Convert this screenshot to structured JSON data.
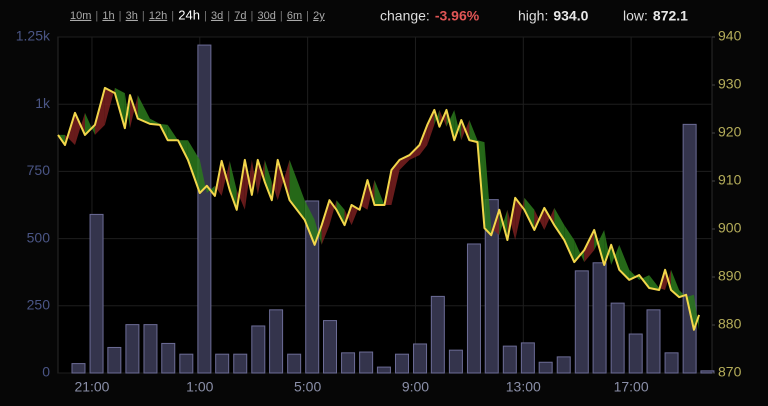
{
  "ranges": [
    {
      "label": "10m"
    },
    {
      "label": "1h"
    },
    {
      "label": "3h"
    },
    {
      "label": "12h"
    },
    {
      "label": "24h",
      "selected": true
    },
    {
      "label": "3d"
    },
    {
      "label": "7d"
    },
    {
      "label": "30d"
    },
    {
      "label": "6m"
    },
    {
      "label": "2y"
    }
  ],
  "stats": [
    {
      "label": "change:",
      "value": "-3.96%",
      "color": "#e05555"
    },
    {
      "label": "high:",
      "value": "934.0",
      "color": "#e8e8e8"
    },
    {
      "label": "low:",
      "value": "872.1",
      "color": "#e8e8e8"
    }
  ],
  "chart_data": {
    "type": "combo",
    "grid": true,
    "xlim": [
      19.74,
      44
    ],
    "xticks": [
      {
        "value": 21,
        "label": "21:00"
      },
      {
        "value": 25,
        "label": "1:00"
      },
      {
        "value": 29,
        "label": "5:00"
      },
      {
        "value": 33,
        "label": "9:00"
      },
      {
        "value": 37,
        "label": "13:00"
      },
      {
        "value": 41,
        "label": "17:00"
      }
    ],
    "ylim": [
      0,
      1250
    ],
    "yticks": [
      0,
      250,
      500,
      750,
      {
        "value": 1000,
        "label": "1k"
      },
      {
        "value": 1250,
        "label": "1.25k"
      }
    ],
    "y2lim": [
      870,
      940
    ],
    "y2ticks": [
      870,
      880,
      890,
      900,
      910,
      920,
      930,
      940
    ],
    "series": [
      {
        "type": "bar",
        "color": "#34344c",
        "stroke": "#6c6c96",
        "x": [
          20.5,
          21.17,
          21.83,
          22.5,
          23.17,
          23.83,
          24.5,
          25.17,
          25.83,
          26.5,
          27.17,
          27.83,
          28.5,
          29.17,
          29.83,
          30.5,
          31.17,
          31.83,
          32.5,
          33.17,
          33.83,
          34.5,
          35.17,
          35.83,
          36.5,
          37.17,
          37.83,
          38.5,
          39.17,
          39.83,
          40.5,
          41.17,
          41.83,
          42.5,
          43.17,
          43.83
        ],
        "values": [
          35,
          590,
          95,
          180,
          180,
          110,
          70,
          1220,
          70,
          70,
          175,
          235,
          70,
          640,
          195,
          75,
          78,
          22,
          70,
          108,
          285,
          85,
          480,
          645,
          100,
          112,
          40,
          60,
          380,
          410,
          260,
          145,
          235,
          75,
          925,
          8
        ]
      },
      {
        "type": "line",
        "axis": "y2",
        "color": "#f2d64b",
        "x": [
          19.74,
          20.0,
          20.37,
          20.74,
          21.11,
          21.48,
          21.85,
          22.22,
          22.41,
          22.7,
          23.15,
          23.52,
          23.81,
          24.19,
          24.56,
          25.0,
          25.26,
          25.56,
          25.81,
          26.11,
          26.37,
          26.67,
          26.93,
          27.15,
          27.41,
          27.67,
          27.89,
          28.33,
          28.89,
          29.26,
          29.52,
          29.81,
          30.07,
          30.37,
          30.63,
          30.93,
          31.22,
          31.48,
          31.85,
          32.11,
          32.41,
          32.78,
          33.15,
          33.44,
          33.7,
          33.89,
          34.15,
          34.44,
          34.7,
          35.0,
          35.3,
          35.56,
          35.81,
          36.11,
          36.41,
          36.7,
          37.04,
          37.41,
          37.78,
          38.15,
          38.52,
          38.89,
          39.26,
          39.63,
          40.0,
          40.26,
          40.56,
          40.93,
          41.3,
          41.67,
          42.04,
          42.26,
          42.48,
          42.78,
          43.04,
          43.33,
          43.52
        ],
        "values": [
          919.6,
          917.5,
          924.2,
          919.6,
          921.7,
          929.4,
          928.3,
          921.0,
          927.9,
          923.0,
          921.9,
          921.7,
          918.5,
          918.5,
          914.4,
          907.5,
          909.0,
          906.9,
          914.2,
          908.1,
          904.0,
          914.4,
          907.1,
          914.4,
          909.8,
          906.0,
          914.4,
          906.0,
          901.9,
          896.7,
          900.8,
          906.0,
          904.0,
          900.8,
          905.0,
          904.0,
          910.2,
          905.0,
          905.0,
          912.3,
          914.4,
          915.4,
          917.5,
          921.7,
          924.8,
          921.3,
          924.8,
          918.5,
          922.7,
          918.5,
          918.1,
          900.2,
          898.7,
          904.0,
          897.7,
          906.5,
          904.0,
          899.8,
          904.4,
          900.8,
          897.7,
          893.1,
          895.6,
          899.8,
          892.5,
          896.7,
          891.5,
          889.4,
          890.4,
          887.7,
          887.3,
          891.5,
          887.3,
          885.8,
          886.3,
          879.0,
          882.1
        ]
      },
      {
        "type": "band",
        "axis": "y2",
        "color": [
          "#2c7a1c",
          "#7a2020"
        ],
        "values": [
          919.6,
          919.6,
          917.5,
          924.2,
          919.6,
          921.7,
          929.4,
          928.3,
          921.0,
          927.9,
          923.0,
          921.9,
          921.7,
          918.5,
          918.5,
          914.4,
          907.5,
          909.0,
          906.9,
          914.2,
          908.1,
          904.0,
          914.4,
          907.1,
          914.4,
          909.8,
          906.0,
          914.4,
          906.0,
          901.9,
          896.7,
          900.8,
          906.0,
          904.0,
          900.8,
          905.0,
          904.0,
          910.2,
          905.0,
          905.0,
          912.3,
          914.4,
          915.4,
          917.5,
          921.7,
          924.8,
          921.3,
          924.8,
          918.5,
          922.7,
          918.5,
          918.1,
          900.2,
          898.7,
          904.0,
          897.7,
          906.5,
          904.0,
          899.8,
          904.4,
          900.8,
          897.7,
          893.1,
          895.6,
          899.8,
          892.5,
          896.7,
          891.5,
          889.4,
          890.4,
          887.7,
          887.3,
          891.5,
          887.3,
          885.8,
          886.3,
          879.0
        ]
      }
    ]
  }
}
